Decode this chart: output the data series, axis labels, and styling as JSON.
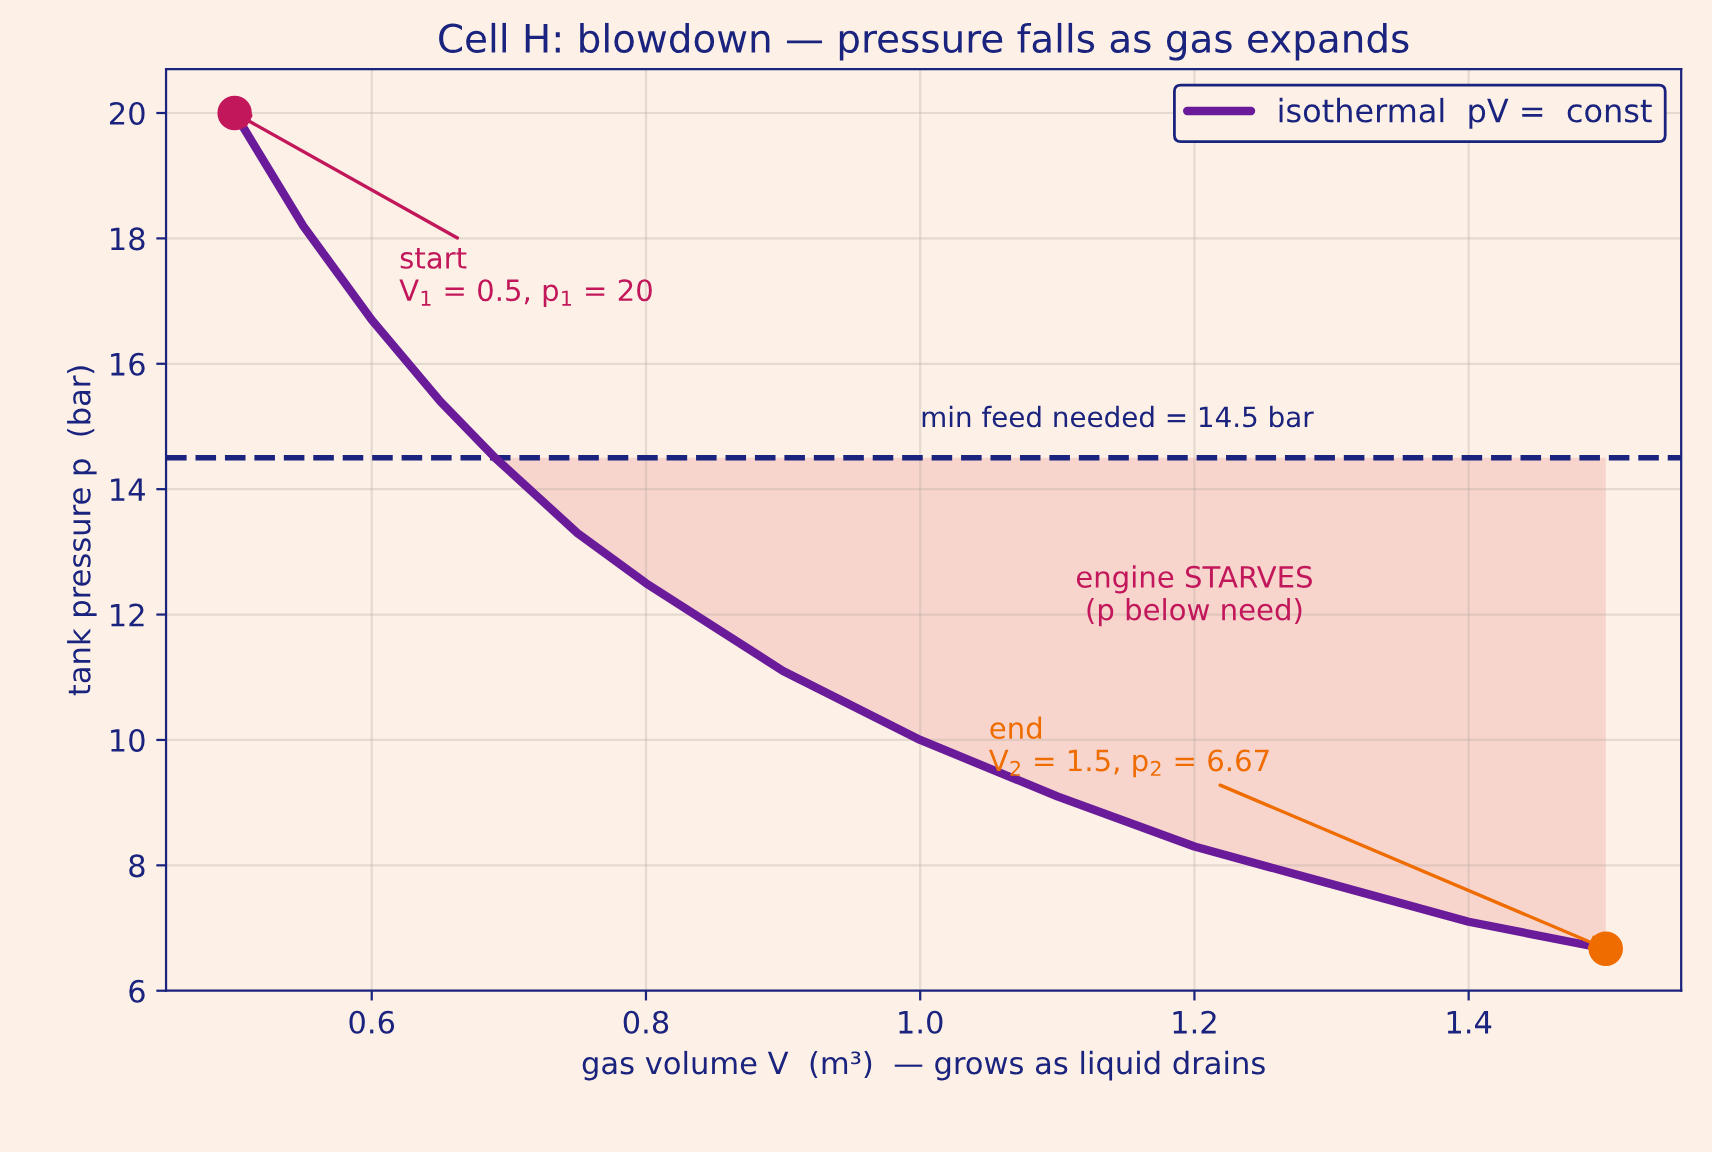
{
  "chart_data": {
    "type": "line",
    "title": "Cell H: blowdown — pressure falls as gas expands",
    "xlabel": "gas volume V  (m³)  — grows as liquid drains",
    "ylabel": "tank pressure p  (bar)",
    "series": [
      {
        "name": "isothermal  pV =  const",
        "color": "#6a1b9a",
        "x": [
          0.5,
          0.55,
          0.6,
          0.65,
          0.69,
          0.75,
          0.8,
          0.9,
          1.0,
          1.1,
          1.2,
          1.3,
          1.4,
          1.5
        ],
        "values": [
          20,
          18.2,
          16.7,
          15.4,
          14.5,
          13.3,
          12.5,
          11.1,
          10,
          9.1,
          8.3,
          7.7,
          7.1,
          6.67
        ],
        "lower": [
          null,
          null,
          null,
          null,
          14.5,
          13.3,
          12.5,
          11.1,
          10,
          9.1,
          8.3,
          7.7,
          7.1,
          6.67
        ],
        "upper": [
          null,
          null,
          null,
          null,
          14.5,
          14.5,
          14.5,
          14.5,
          14.5,
          14.5,
          14.5,
          14.5,
          14.5,
          14.5
        ]
      },
      {
        "type": "scatter",
        "marker": "circle",
        "color": "#c2185b",
        "x": [
          0.5
        ],
        "values": [
          20
        ]
      },
      {
        "type": "scatter",
        "marker": "circle",
        "color": "#ef6c00",
        "x": [
          1.5
        ],
        "values": [
          6.67
        ]
      }
    ],
    "ref_lines": [
      {
        "axis": "y",
        "value": 14.5,
        "label": "min feed needed = 14.5 bar",
        "color": "#1a237e",
        "line_style": "dashed"
      }
    ],
    "annotations": [
      {
        "text": "start\nV$_{1}$ = 0.5, p$_{1}$ = 20",
        "x": 0.5,
        "y": 20
      },
      {
        "text": "end\nV$_{2}$ = 1.5, p$_{2}$ = 6.67",
        "x": 1.5,
        "y": 6.67
      },
      "engine STARVES\n(p below need)"
    ],
    "xlim": [
      0.45,
      1.555
    ],
    "ylim": [
      6,
      20.7
    ],
    "xticks": [
      0.6,
      0.8,
      {
        "value": 1,
        "label": "1.0"
      },
      1.2,
      1.4
    ],
    "yticks": [
      6,
      8,
      10,
      12,
      14,
      16,
      18,
      20
    ],
    "grid": true,
    "legend": "top right"
  }
}
